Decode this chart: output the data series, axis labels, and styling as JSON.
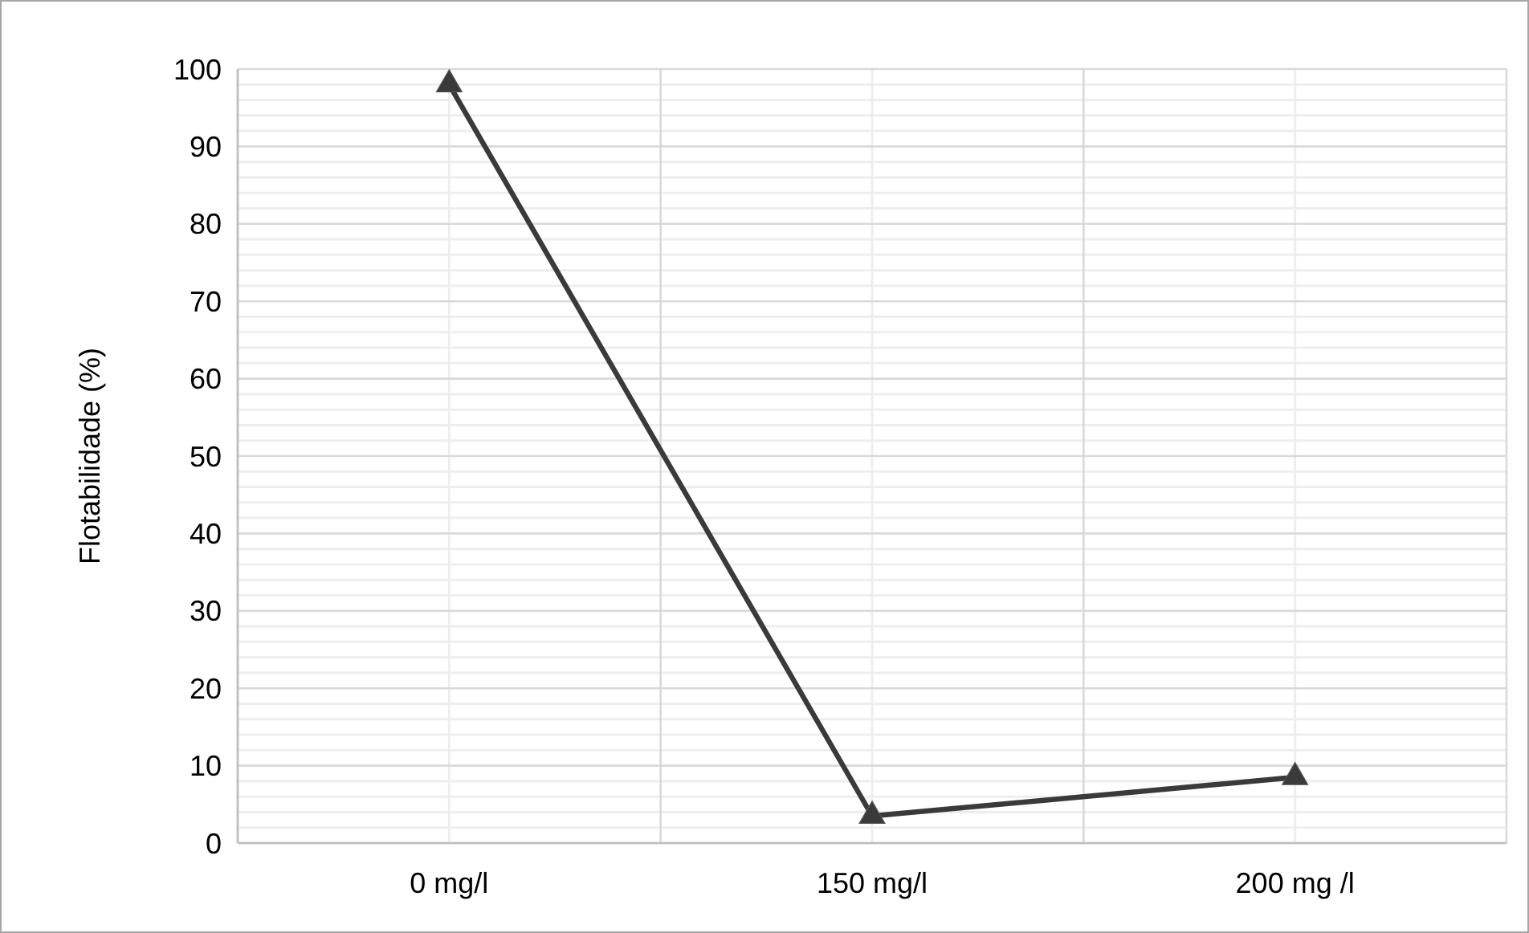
{
  "chart_data": {
    "type": "line",
    "ylabel": "Flotabilidade (%)",
    "categories": [
      "0 mg/l",
      "150 mg/l",
      "200 mg /l"
    ],
    "series": [
      {
        "color": "#3a3a3a",
        "values": [
          98,
          3.5,
          8.5
        ]
      }
    ],
    "ylim": [
      0,
      100
    ],
    "yticks": [
      0,
      10,
      20,
      30,
      40,
      50,
      60,
      70,
      80,
      90,
      100
    ],
    "grid": true,
    "marker": "triangle",
    "line_style": "solid"
  }
}
